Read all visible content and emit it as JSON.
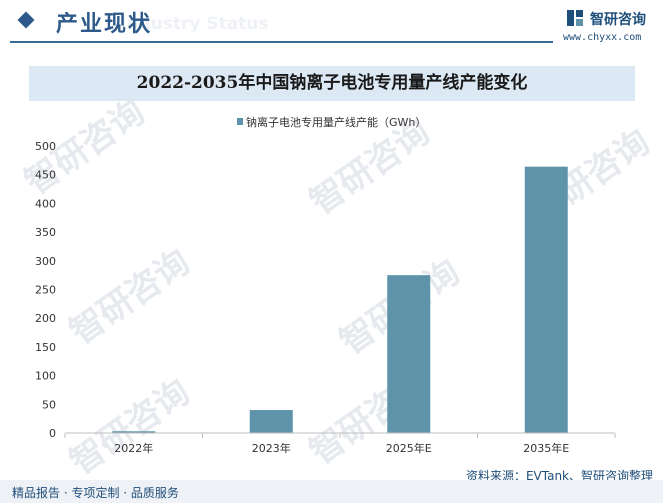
{
  "header": {
    "title": "产业现状",
    "ghost_text": "Industry Status",
    "brand_name": "智研咨询",
    "brand_url": "www.chyxx.com",
    "accent_color": "#2d5a8a"
  },
  "watermark_text": "智研咨询",
  "source_text": "资料来源：EVTank、智研咨询整理",
  "footer_text": "精品报告 · 专项定制 · 品质服务",
  "chart_data": {
    "type": "bar",
    "title": "2022-2035年中国钠离子电池专用量产线产能变化",
    "categories": [
      "2022年",
      "2023年",
      "2025年E",
      "2035年E"
    ],
    "series": [
      {
        "name": "钠离子电池专用量产线产能（GWh）",
        "values": [
          3,
          40,
          275,
          464
        ],
        "color": "#5f93a9"
      }
    ],
    "ylim": [
      0,
      500
    ],
    "yticks": [
      0,
      50,
      100,
      150,
      200,
      250,
      300,
      350,
      400,
      450,
      500
    ],
    "legend_position": "top-center",
    "grid": false
  }
}
